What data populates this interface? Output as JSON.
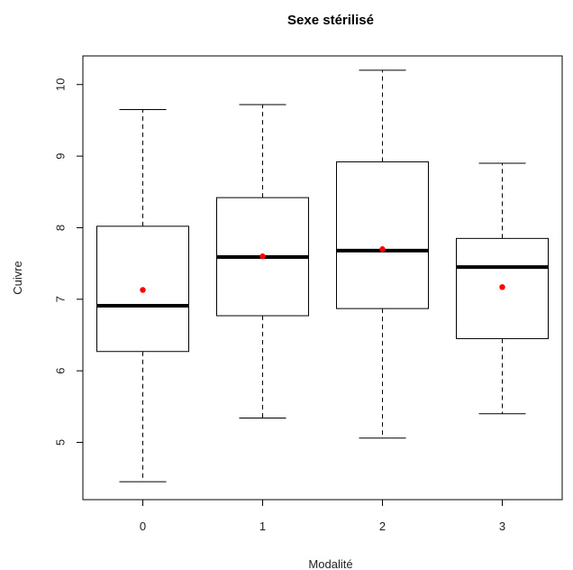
{
  "chart_data": {
    "type": "box",
    "title": "Sexe stérilisé",
    "xlabel": "Modalité",
    "ylabel": "Cuivre",
    "categories": [
      "0",
      "1",
      "2",
      "3"
    ],
    "y_ticks": [
      "5",
      "6",
      "7",
      "8",
      "9",
      "10"
    ],
    "ylim": [
      4.2,
      10.4
    ],
    "grid": false,
    "boxes": [
      {
        "category": "0",
        "whisker_low": 4.45,
        "q1": 6.27,
        "median": 6.91,
        "q3": 8.02,
        "whisker_high": 9.65,
        "mean": 7.13
      },
      {
        "category": "1",
        "whisker_low": 5.34,
        "q1": 6.77,
        "median": 7.59,
        "q3": 8.42,
        "whisker_high": 9.72,
        "mean": 7.6
      },
      {
        "category": "2",
        "whisker_low": 5.06,
        "q1": 6.87,
        "median": 7.68,
        "q3": 8.92,
        "whisker_high": 10.2,
        "mean": 7.7
      },
      {
        "category": "3",
        "whisker_low": 5.4,
        "q1": 6.45,
        "median": 7.45,
        "q3": 7.85,
        "whisker_high": 8.9,
        "mean": 7.17
      }
    ],
    "colors": {
      "box": "#000000",
      "median": "#000000",
      "mean": "#ff0000"
    }
  }
}
